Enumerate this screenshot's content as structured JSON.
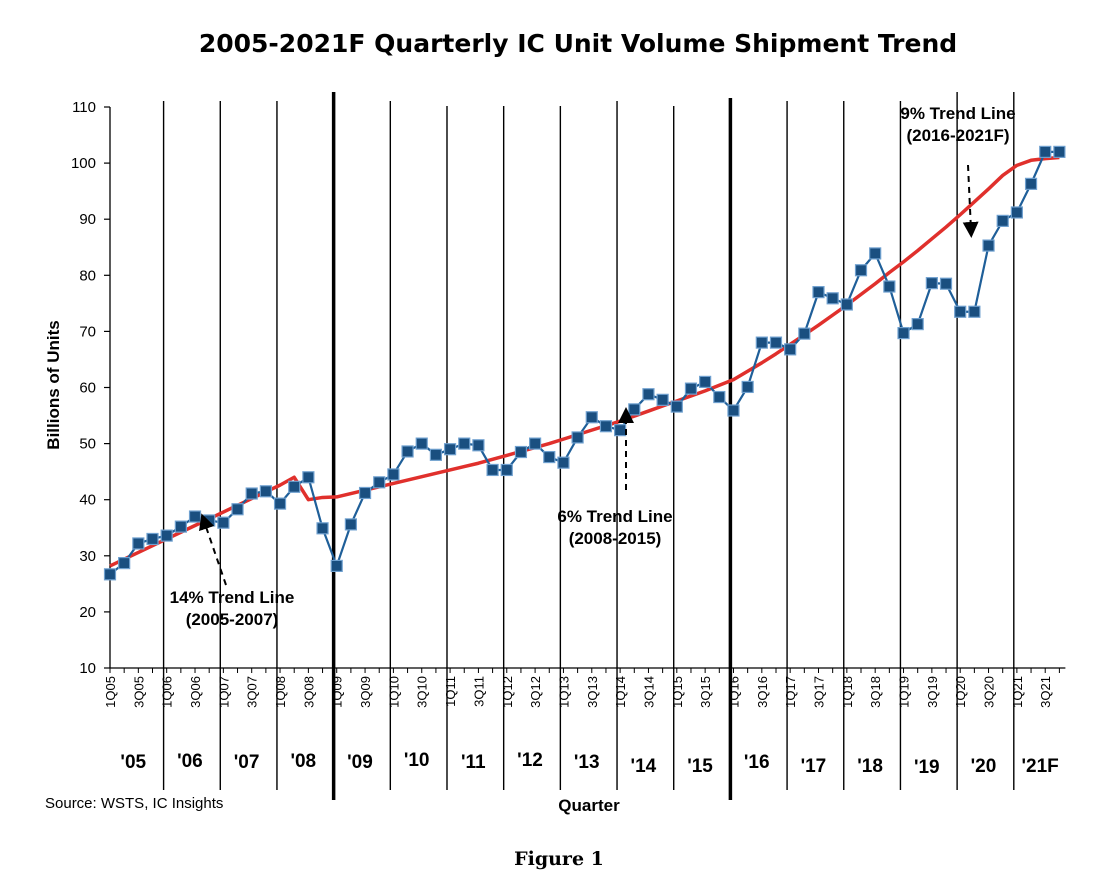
{
  "chart_data": {
    "type": "line",
    "title": "2005-2021F Quarterly IC Unit Volume Shipment Trend",
    "ylabel": "Billions of Units",
    "xlabel": "Quarter",
    "source": "Source: WSTS, IC Insights",
    "caption": "Figure 1",
    "ylim": [
      10,
      110
    ],
    "yticks": [
      10,
      20,
      30,
      40,
      50,
      60,
      70,
      80,
      90,
      100,
      110
    ],
    "grid": false,
    "x": [
      "1Q05",
      "2Q05",
      "3Q05",
      "4Q05",
      "1Q06",
      "2Q06",
      "3Q06",
      "4Q06",
      "1Q07",
      "2Q07",
      "3Q07",
      "4Q07",
      "1Q08",
      "2Q08",
      "3Q08",
      "4Q08",
      "1Q09",
      "2Q09",
      "3Q09",
      "4Q09",
      "1Q10",
      "2Q10",
      "3Q10",
      "4Q10",
      "1Q11",
      "2Q11",
      "3Q11",
      "4Q11",
      "1Q12",
      "2Q12",
      "3Q12",
      "4Q12",
      "1Q13",
      "2Q13",
      "3Q13",
      "4Q13",
      "1Q14",
      "2Q14",
      "3Q14",
      "4Q14",
      "1Q15",
      "2Q15",
      "3Q15",
      "4Q15",
      "1Q16",
      "2Q16",
      "3Q16",
      "4Q16",
      "1Q17",
      "2Q17",
      "3Q17",
      "4Q17",
      "1Q18",
      "2Q18",
      "3Q18",
      "4Q18",
      "1Q19",
      "2Q19",
      "3Q19",
      "4Q19",
      "1Q20",
      "2Q20",
      "3Q20",
      "4Q20",
      "1Q21",
      "2Q21",
      "3Q21",
      "4Q21"
    ],
    "tick_labels": [
      "1Q05",
      "3Q05",
      "1Q06",
      "3Q06",
      "1Q07",
      "3Q07",
      "1Q08",
      "3Q08",
      "1Q09",
      "3Q09",
      "1Q10",
      "3Q10",
      "1Q11",
      "3Q11",
      "1Q12",
      "3Q12",
      "1Q13",
      "3Q13",
      "1Q14",
      "3Q14",
      "1Q15",
      "3Q15",
      "1Q16",
      "3Q16",
      "1Q17",
      "3Q17",
      "1Q18",
      "3Q18",
      "1Q19",
      "3Q19",
      "1Q20",
      "3Q20",
      "1Q21",
      "3Q21"
    ],
    "years": [
      "'05",
      "'06",
      "'07",
      "'08",
      "'09",
      "'10",
      "'11",
      "'12",
      "'13",
      "'14",
      "'15",
      "'16",
      "'17",
      "'18",
      "'19",
      "'20",
      "'21F"
    ],
    "series": [
      {
        "values": [
          26.7,
          28.7,
          32.2,
          33.0,
          33.6,
          35.2,
          37.0,
          36.3,
          35.9,
          38.3,
          41.1,
          41.5,
          39.3,
          42.3,
          44.0,
          34.9,
          28.2,
          35.6,
          41.2,
          43.1,
          44.5,
          48.6,
          50.0,
          48.0,
          49.0,
          50.0,
          49.7,
          45.3,
          45.3,
          48.5,
          50.0,
          47.6,
          46.6,
          51.1,
          54.7,
          53.1,
          52.4,
          56.1,
          58.8,
          57.8,
          56.6,
          59.8,
          61.0,
          58.3,
          55.9,
          60.1,
          68.0,
          68.0,
          66.8,
          69.6,
          77.0,
          75.9,
          74.8,
          80.9,
          83.9,
          78.0,
          69.7,
          71.3,
          78.6,
          78.5,
          73.5,
          73.5,
          85.3,
          89.7,
          91.2,
          96.3,
          102.0,
          102.0
        ],
        "color": "#1f5f99",
        "marker_color": "#1a4f80"
      }
    ],
    "trend_line": {
      "color": "#e0302c",
      "values": [
        28.2,
        29.4,
        30.6,
        31.8,
        33.0,
        34.2,
        35.4,
        36.6,
        37.8,
        39.0,
        40.2,
        41.4,
        42.6,
        44.0,
        40.0,
        40.4,
        40.5,
        41.1,
        41.7,
        42.3,
        42.9,
        43.5,
        44.1,
        44.7,
        45.3,
        45.9,
        46.5,
        47.2,
        47.9,
        48.6,
        49.3,
        50.0,
        50.8,
        51.6,
        52.4,
        53.2,
        54.0,
        54.9,
        55.8,
        56.7,
        57.6,
        58.5,
        59.4,
        60.4,
        61.4,
        62.9,
        64.4,
        66.0,
        67.7,
        69.4,
        71.1,
        72.9,
        74.7,
        76.6,
        78.5,
        80.5,
        82.4,
        84.4,
        86.5,
        88.6,
        90.8,
        93.1,
        95.4,
        97.8,
        99.6,
        100.5,
        100.8,
        101.0
      ]
    },
    "annotations": [
      {
        "lines": [
          "14%  Trend Line",
          "(2005-2007)"
        ],
        "arrow_to": "3Q06"
      },
      {
        "lines": [
          "6% Trend Line",
          "(2008-2015)"
        ],
        "arrow_to": "1Q14"
      },
      {
        "lines": [
          "9% Trend Line",
          "(2016-2021F)"
        ],
        "arrow_to": "1Q20"
      }
    ]
  }
}
